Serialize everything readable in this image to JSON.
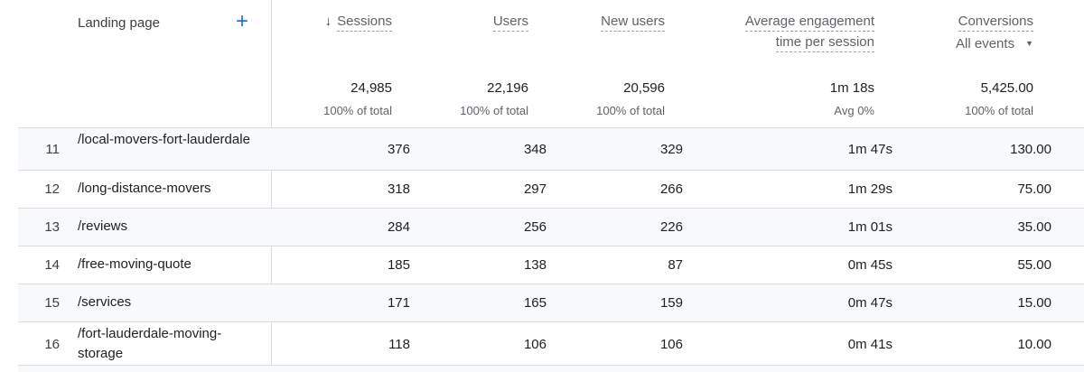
{
  "header": {
    "dimension_label": "Landing page",
    "add_icon": "plus-icon",
    "sort_icon": "arrow-down-icon",
    "sessions": "Sessions",
    "users": "Users",
    "new_users": "New users",
    "engagement_line1": "Average engagement",
    "engagement_line2": "time per session",
    "conversions": "Conversions",
    "events_filter": "All events",
    "events_caret": "▼"
  },
  "totals": {
    "sessions": "24,985",
    "users": "22,196",
    "new_users": "20,596",
    "engagement": "1m 18s",
    "conversions": "5,425.00",
    "sessions_pct": "100% of total",
    "users_pct": "100% of total",
    "new_users_pct": "100% of total",
    "engagement_pct": "Avg 0%",
    "conversions_pct": "100% of total"
  },
  "rows": [
    {
      "idx": "11",
      "page": "/local-movers-fort-lauderdale",
      "sessions": "376",
      "users": "348",
      "new_users": "329",
      "engagement": "1m 47s",
      "conversions": "130.00"
    },
    {
      "idx": "12",
      "page": "/long-distance-movers",
      "sessions": "318",
      "users": "297",
      "new_users": "266",
      "engagement": "1m 29s",
      "conversions": "75.00"
    },
    {
      "idx": "13",
      "page": "/reviews",
      "sessions": "284",
      "users": "256",
      "new_users": "226",
      "engagement": "1m 01s",
      "conversions": "35.00"
    },
    {
      "idx": "14",
      "page": "/free-moving-quote",
      "sessions": "185",
      "users": "138",
      "new_users": "87",
      "engagement": "0m 45s",
      "conversions": "55.00"
    },
    {
      "idx": "15",
      "page": "/services",
      "sessions": "171",
      "users": "165",
      "new_users": "159",
      "engagement": "0m 47s",
      "conversions": "15.00"
    },
    {
      "idx": "16",
      "page": "/fort-lauderdale-moving-storage",
      "sessions": "118",
      "users": "106",
      "new_users": "106",
      "engagement": "0m 41s",
      "conversions": "10.00"
    }
  ],
  "colors": {
    "accent": "#1a73e8",
    "row_shade": "#f8f9fa",
    "border": "#dadce0",
    "muted_text": "#5f6368"
  }
}
